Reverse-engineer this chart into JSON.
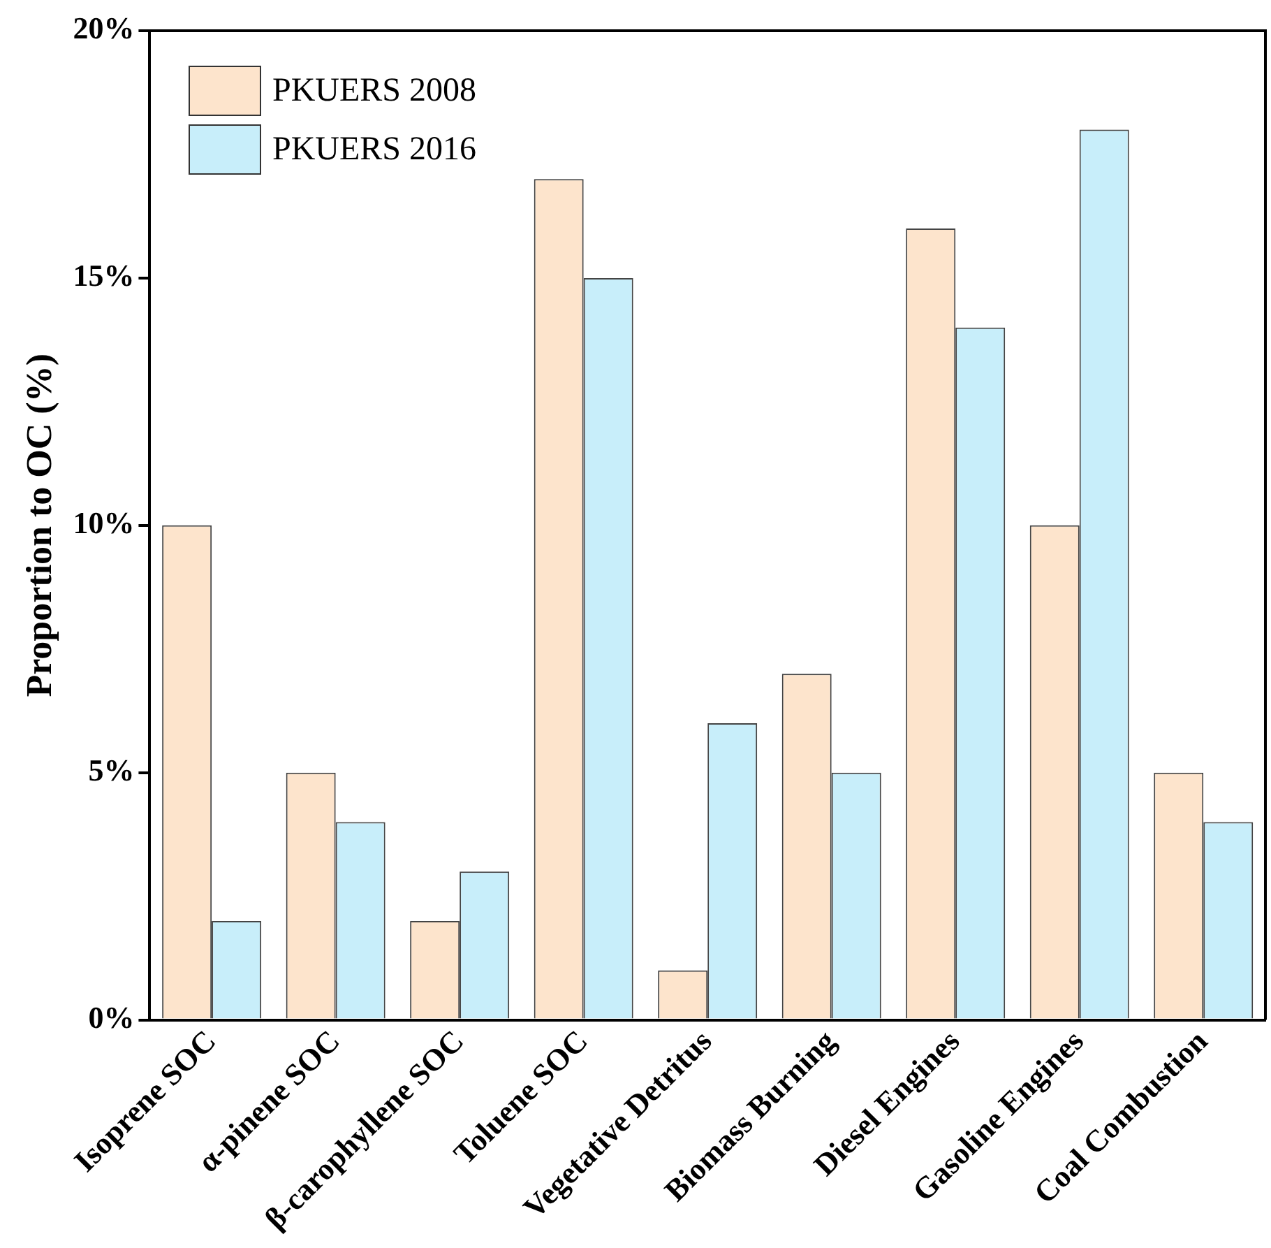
{
  "chart_data": {
    "type": "bar",
    "ylabel": "Proportion to OC (%)",
    "categories": [
      "Isoprene SOC",
      "α-pinene SOC",
      "β-carophyllene SOC",
      "Toluene SOC",
      "Vegetative Detritus",
      "Biomass Burning",
      "Diesel Engines",
      "Gasoline Engines",
      "Coal Combustion"
    ],
    "series": [
      {
        "name": "PKUERS 2008",
        "color": "#fde4cc",
        "values": [
          10,
          5,
          2,
          17,
          1,
          7,
          16,
          10,
          5
        ]
      },
      {
        "name": "PKUERS 2016",
        "color": "#c8eefa",
        "values": [
          2,
          4,
          3,
          15,
          6,
          5,
          14,
          18,
          4
        ]
      }
    ],
    "ylim": [
      0,
      20
    ],
    "yticks": [
      {
        "value": 0,
        "label": "0%"
      },
      {
        "value": 5,
        "label": "5%"
      },
      {
        "value": 10,
        "label": "10%"
      },
      {
        "value": 15,
        "label": "15%"
      },
      {
        "value": 20,
        "label": "20%"
      }
    ],
    "grid": false,
    "legend": "top left"
  }
}
